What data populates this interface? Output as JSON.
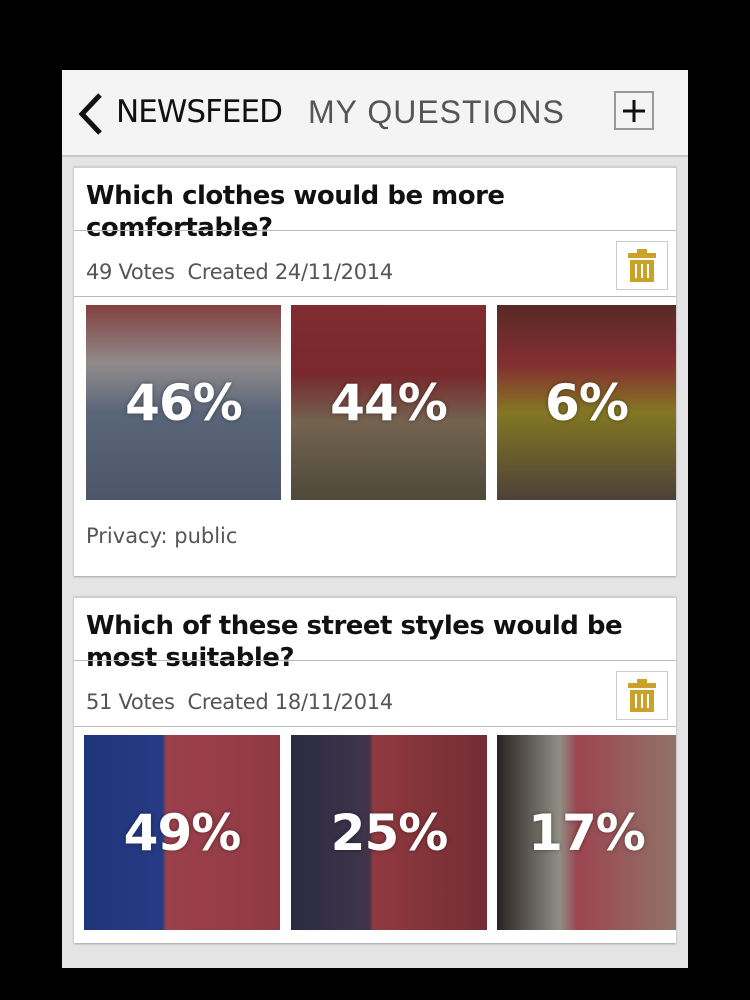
{
  "header": {
    "back_icon": "chevron-left-icon",
    "tab_newsfeed": "NEWSFEED",
    "tab_my_questions": "MY QUESTIONS",
    "add_icon": "plus-icon"
  },
  "colors": {
    "trash": "#c9a227",
    "header_bg": "#f4f4f4",
    "content_bg": "#e4e4e4"
  },
  "questions": [
    {
      "title": "Which clothes would be more comfortable?",
      "votes": "49 Votes",
      "created": "Created 24/11/2014",
      "options": [
        {
          "percent": "46%"
        },
        {
          "percent": "44%"
        },
        {
          "percent": "6%"
        }
      ],
      "privacy": "Privacy: public"
    },
    {
      "title": "Which of these street styles would be most suitable?",
      "votes": "51 Votes",
      "created": "Created 18/11/2014",
      "options": [
        {
          "percent": "49%"
        },
        {
          "percent": "25%"
        },
        {
          "percent": "17%"
        }
      ]
    }
  ]
}
